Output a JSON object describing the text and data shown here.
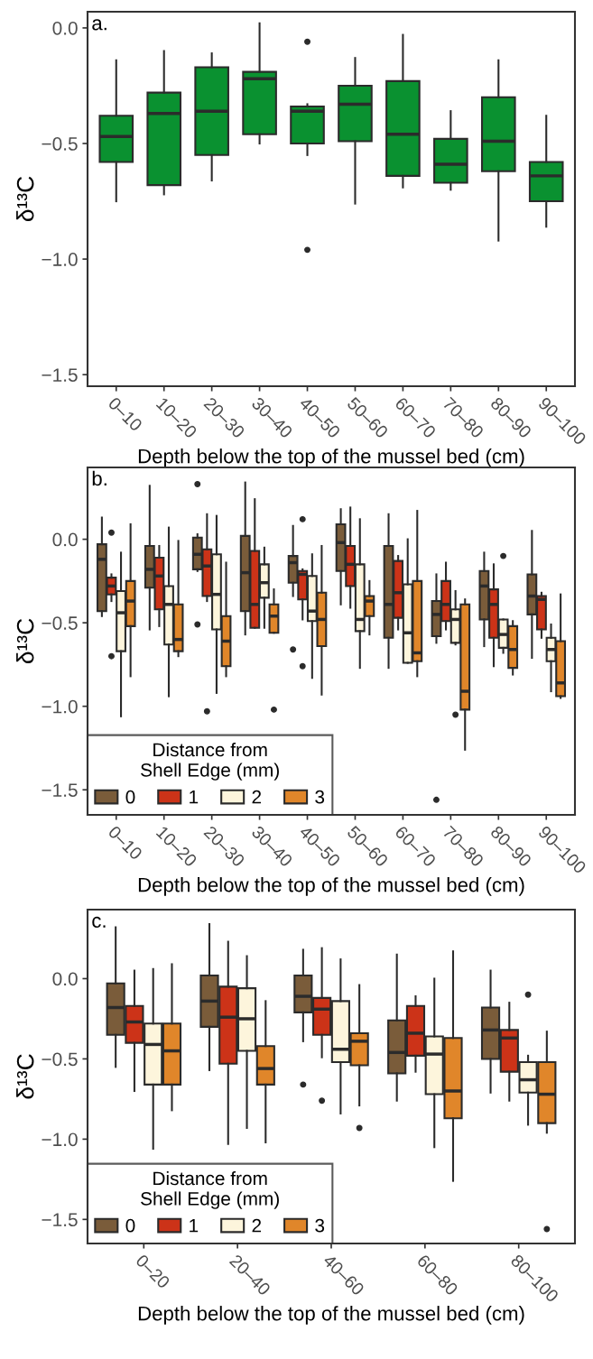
{
  "chart_data": [
    {
      "type": "box",
      "title": "a.",
      "xlabel": "Depth below the top of the mussel bed (cm)",
      "ylabel": "δ¹³C",
      "ylim": [
        -1.55,
        0.07
      ],
      "yticks": [
        {
          "value": 0,
          "label": "0.0"
        },
        {
          "value": -0.5,
          "label": "−0.5"
        },
        {
          "value": -1,
          "label": "−1.0"
        },
        {
          "value": -1.5,
          "label": "−1.5"
        }
      ],
      "grid": false,
      "legend": false,
      "categories": [
        "0–10",
        "10–20",
        "20–30",
        "30–40",
        "40–50",
        "50–60",
        "60–70",
        "70–80",
        "80–90",
        "90–100"
      ],
      "series": [
        {
          "color": "#0a9130",
          "boxes": [
            {
              "low": -0.75,
              "q1": -0.58,
              "median": -0.47,
              "q3": -0.38,
              "high": -0.14
            },
            {
              "low": -0.72,
              "q1": -0.68,
              "median": -0.37,
              "q3": -0.28,
              "high": -0.1
            },
            {
              "low": -0.66,
              "q1": -0.55,
              "median": -0.36,
              "q3": -0.17,
              "high": -0.11
            },
            {
              "low": -0.5,
              "q1": -0.46,
              "median": -0.22,
              "q3": -0.19,
              "high": 0.02
            },
            {
              "low": -0.55,
              "q1": -0.5,
              "median": -0.36,
              "q3": -0.34,
              "high": -0.33,
              "outliers": [
                -0.06,
                -0.96
              ]
            },
            {
              "low": -0.76,
              "q1": -0.49,
              "median": -0.33,
              "q3": -0.25,
              "high": -0.13
            },
            {
              "low": -0.69,
              "q1": -0.64,
              "median": -0.46,
              "q3": -0.23,
              "high": -0.03
            },
            {
              "low": -0.7,
              "q1": -0.67,
              "median": -0.59,
              "q3": -0.48,
              "high": -0.36
            },
            {
              "low": -0.92,
              "q1": -0.62,
              "median": -0.49,
              "q3": -0.3,
              "high": -0.14
            },
            {
              "low": -0.86,
              "q1": -0.75,
              "median": -0.64,
              "q3": -0.58,
              "high": -0.38
            }
          ]
        }
      ]
    },
    {
      "type": "box",
      "title": "b.",
      "xlabel": "Depth below the top of the mussel bed (cm)",
      "ylabel": "δ¹³C",
      "ylim": [
        -1.65,
        0.43
      ],
      "yticks": [
        {
          "value": 0,
          "label": "0.0"
        },
        {
          "value": -0.5,
          "label": "−0.5"
        },
        {
          "value": -1,
          "label": "−1.0"
        },
        {
          "value": -1.5,
          "label": "−1.5"
        }
      ],
      "grid": false,
      "legend": "bottom left",
      "legend_title": "Distance from\nShell Edge (mm)",
      "categories": [
        "0–10",
        "10–20",
        "20–30",
        "30–40",
        "40–50",
        "50–60",
        "60–70",
        "70–80",
        "80–90",
        "90–100"
      ],
      "series": [
        {
          "name": "0",
          "color": "#7a5c3a",
          "boxes": [
            {
              "low": -0.46,
              "q1": -0.43,
              "median": -0.12,
              "q3": -0.03,
              "high": 0.13
            },
            {
              "low": -0.54,
              "q1": -0.29,
              "median": -0.18,
              "q3": -0.04,
              "high": 0.32
            },
            {
              "low": -0.19,
              "q1": -0.18,
              "median": -0.09,
              "q3": 0.01,
              "high": 0.03,
              "outliers": [
                0.33,
                -0.51
              ]
            },
            {
              "low": -0.57,
              "q1": -0.43,
              "median": -0.2,
              "q3": 0.02,
              "high": 0.34
            },
            {
              "low": -0.34,
              "q1": -0.26,
              "median": -0.14,
              "q3": -0.1,
              "high": 0.08,
              "outliers": [
                -0.66
              ]
            },
            {
              "low": -0.39,
              "q1": -0.19,
              "median": -0.02,
              "q3": 0.09,
              "high": 0.18
            },
            {
              "low": -0.77,
              "q1": -0.59,
              "median": -0.39,
              "q3": -0.04,
              "high": 0.15
            },
            {
              "low": -0.62,
              "q1": -0.58,
              "median": -0.45,
              "q3": -0.37,
              "high": -0.21,
              "outliers": [
                -1.56
              ]
            },
            {
              "low": -0.64,
              "q1": -0.48,
              "median": -0.28,
              "q3": -0.19,
              "high": -0.08
            },
            {
              "low": -0.71,
              "q1": -0.45,
              "median": -0.34,
              "q3": -0.21,
              "high": 0.05
            }
          ]
        },
        {
          "name": "1",
          "color": "#cc3318",
          "boxes": [
            {
              "low": -0.37,
              "q1": -0.33,
              "median": -0.28,
              "q3": -0.23,
              "high": -0.21,
              "outliers": [
                0.04,
                -0.7
              ]
            },
            {
              "low": -0.52,
              "q1": -0.42,
              "median": -0.22,
              "q3": -0.11,
              "high": -0.04
            },
            {
              "low": -0.37,
              "q1": -0.34,
              "median": -0.16,
              "q3": -0.06,
              "high": 0.15,
              "outliers": [
                -1.03
              ]
            },
            {
              "low": -0.53,
              "q1": -0.53,
              "median": -0.39,
              "q3": -0.07,
              "high": 0.24
            },
            {
              "low": -0.48,
              "q1": -0.36,
              "median": -0.21,
              "q3": -0.19,
              "high": -0.18,
              "outliers": [
                0.12,
                -0.76
              ]
            },
            {
              "low": -0.41,
              "q1": -0.28,
              "median": -0.15,
              "q3": -0.04,
              "high": 0.19
            },
            {
              "low": -0.54,
              "q1": -0.47,
              "median": -0.32,
              "q3": -0.13,
              "high": -0.1
            },
            {
              "low": -0.54,
              "q1": -0.49,
              "median": -0.39,
              "q3": -0.25,
              "high": -0.14
            },
            {
              "low": -0.76,
              "q1": -0.59,
              "median": -0.39,
              "q3": -0.3,
              "high": -0.15
            },
            {
              "low": -0.59,
              "q1": -0.54,
              "median": -0.36,
              "q3": -0.34,
              "high": -0.32
            }
          ]
        },
        {
          "name": "2",
          "color": "#fdf5dc",
          "boxes": [
            {
              "low": -1.06,
              "q1": -0.67,
              "median": -0.44,
              "q3": -0.31,
              "high": -0.08
            },
            {
              "low": -0.94,
              "q1": -0.63,
              "median": -0.39,
              "q3": -0.28,
              "high": 0.07
            },
            {
              "low": -0.92,
              "q1": -0.54,
              "median": -0.33,
              "q3": -0.09,
              "high": 0.14
            },
            {
              "low": -0.53,
              "q1": -0.35,
              "median": -0.26,
              "q3": -0.15,
              "high": -0.05
            },
            {
              "low": -0.83,
              "q1": -0.49,
              "median": -0.43,
              "q3": -0.22,
              "high": -0.09
            },
            {
              "low": -0.77,
              "q1": -0.55,
              "median": -0.48,
              "q3": -0.15,
              "high": 0.12
            },
            {
              "low": -0.74,
              "q1": -0.74,
              "median": -0.56,
              "q3": -0.27,
              "high": 0.0
            },
            {
              "low": -0.63,
              "q1": -0.62,
              "median": -0.48,
              "q3": -0.42,
              "high": -0.31,
              "outliers": [
                -1.05
              ]
            },
            {
              "low": -0.68,
              "q1": -0.65,
              "median": -0.57,
              "q3": -0.48,
              "high": -0.48,
              "outliers": [
                -0.1
              ]
            },
            {
              "low": -0.91,
              "q1": -0.73,
              "median": -0.66,
              "q3": -0.59,
              "high": -0.51
            }
          ]
        },
        {
          "name": "3",
          "color": "#e0862a",
          "boxes": [
            {
              "low": -0.82,
              "q1": -0.52,
              "median": -0.37,
              "q3": -0.25,
              "high": 0.09
            },
            {
              "low": -0.7,
              "q1": -0.67,
              "median": -0.6,
              "q3": -0.39,
              "high": -0.01
            },
            {
              "low": -0.82,
              "q1": -0.76,
              "median": -0.61,
              "q3": -0.46,
              "high": -0.14
            },
            {
              "low": -0.56,
              "q1": -0.56,
              "median": -0.46,
              "q3": -0.39,
              "high": -0.3,
              "outliers": [
                -1.02
              ]
            },
            {
              "low": -0.93,
              "q1": -0.64,
              "median": -0.48,
              "q3": -0.32,
              "high": -0.04
            },
            {
              "low": -0.57,
              "q1": -0.46,
              "median": -0.37,
              "q3": -0.34,
              "high": -0.25
            },
            {
              "low": -0.82,
              "q1": -0.73,
              "median": -0.68,
              "q3": -0.25,
              "high": 0.17
            },
            {
              "low": -1.26,
              "q1": -1.02,
              "median": -0.91,
              "q3": -0.39,
              "high": -0.36
            },
            {
              "low": -0.81,
              "q1": -0.77,
              "median": -0.66,
              "q3": -0.52,
              "high": -0.49
            },
            {
              "low": -0.95,
              "q1": -0.94,
              "median": -0.86,
              "q3": -0.61,
              "high": -0.33
            }
          ]
        }
      ]
    },
    {
      "type": "box",
      "title": "c.",
      "xlabel": "Depth below the top of the mussel bed (cm)",
      "ylabel": "δ¹³C",
      "ylim": [
        -1.65,
        0.43
      ],
      "yticks": [
        {
          "value": 0,
          "label": "0.0"
        },
        {
          "value": -0.5,
          "label": "−0.5"
        },
        {
          "value": -1,
          "label": "−1.0"
        },
        {
          "value": -1.5,
          "label": "−1.5"
        }
      ],
      "grid": false,
      "legend": "bottom left",
      "legend_title": "Distance from\nShell Edge (mm)",
      "categories": [
        "0–20",
        "20–40",
        "40–60",
        "60–80",
        "80–100"
      ],
      "series": [
        {
          "name": "0",
          "color": "#7a5c3a",
          "boxes": [
            {
              "low": -0.55,
              "q1": -0.35,
              "median": -0.18,
              "q3": -0.03,
              "high": 0.32
            },
            {
              "low": -0.57,
              "q1": -0.3,
              "median": -0.14,
              "q3": 0.02,
              "high": 0.34
            },
            {
              "low": -0.39,
              "q1": -0.21,
              "median": -0.11,
              "q3": 0.02,
              "high": 0.18,
              "outliers": [
                -0.66
              ]
            },
            {
              "low": -0.76,
              "q1": -0.59,
              "median": -0.46,
              "q3": -0.26,
              "high": 0.15
            },
            {
              "low": -0.71,
              "q1": -0.5,
              "median": -0.32,
              "q3": -0.18,
              "high": 0.05
            }
          ]
        },
        {
          "name": "1",
          "color": "#cc3318",
          "boxes": [
            {
              "low": -0.7,
              "q1": -0.4,
              "median": -0.27,
              "q3": -0.17,
              "high": 0.05
            },
            {
              "low": -1.03,
              "q1": -0.53,
              "median": -0.24,
              "q3": -0.05,
              "high": 0.23
            },
            {
              "low": -0.49,
              "q1": -0.35,
              "median": -0.19,
              "q3": -0.12,
              "high": 0.19,
              "outliers": [
                -0.76
              ]
            },
            {
              "low": -0.58,
              "q1": -0.48,
              "median": -0.34,
              "q3": -0.17,
              "high": -0.11
            },
            {
              "low": -0.76,
              "q1": -0.58,
              "median": -0.37,
              "q3": -0.32,
              "high": -0.15
            }
          ]
        },
        {
          "name": "2",
          "color": "#fdf5dc",
          "boxes": [
            {
              "low": -1.06,
              "q1": -0.66,
              "median": -0.41,
              "q3": -0.28,
              "high": 0.06
            },
            {
              "low": -0.93,
              "q1": -0.45,
              "median": -0.25,
              "q3": -0.06,
              "high": 0.14
            },
            {
              "low": -0.84,
              "q1": -0.52,
              "median": -0.44,
              "q3": -0.14,
              "high": 0.12
            },
            {
              "low": -1.05,
              "q1": -0.72,
              "median": -0.47,
              "q3": -0.36,
              "high": 0.0
            },
            {
              "low": -0.91,
              "q1": -0.71,
              "median": -0.63,
              "q3": -0.52,
              "high": -0.48,
              "outliers": [
                -0.1
              ]
            }
          ]
        },
        {
          "name": "3",
          "color": "#e0862a",
          "boxes": [
            {
              "low": -0.82,
              "q1": -0.66,
              "median": -0.45,
              "q3": -0.28,
              "high": 0.09
            },
            {
              "low": -1.02,
              "q1": -0.66,
              "median": -0.56,
              "q3": -0.42,
              "high": -0.14
            },
            {
              "low": -0.79,
              "q1": -0.54,
              "median": -0.39,
              "q3": -0.34,
              "high": -0.04,
              "outliers": [
                -0.93
              ]
            },
            {
              "low": -1.26,
              "q1": -0.87,
              "median": -0.7,
              "q3": -0.37,
              "high": 0.17
            },
            {
              "low": -0.96,
              "q1": -0.9,
              "median": -0.72,
              "q3": -0.52,
              "high": -0.33,
              "outliers": [
                -1.56
              ]
            }
          ]
        }
      ]
    }
  ]
}
